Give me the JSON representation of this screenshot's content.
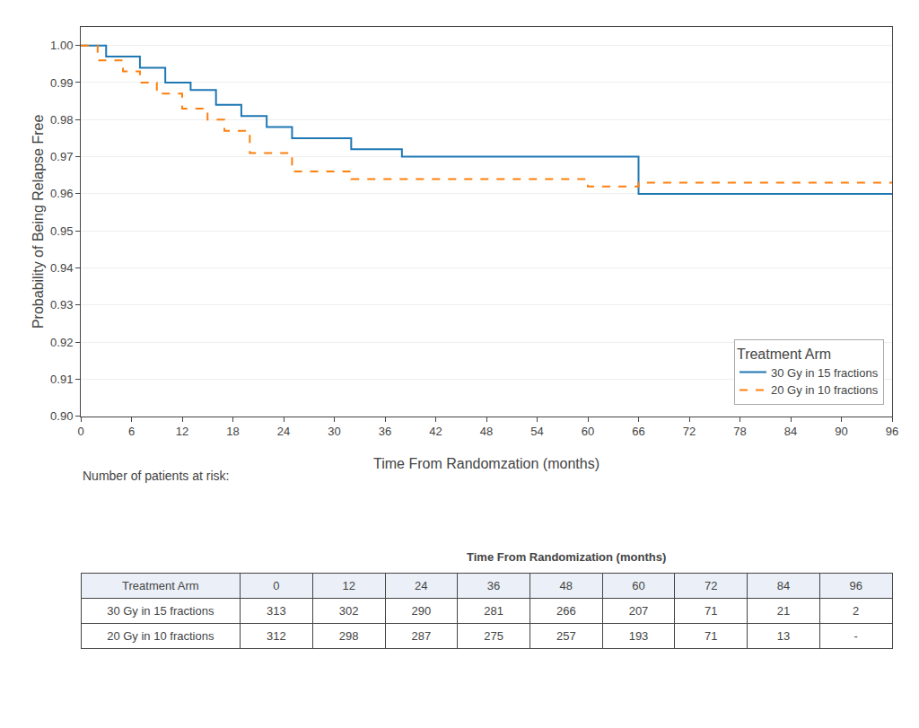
{
  "chart_data": {
    "type": "step",
    "xlabel": "Time From Randomzation (months)",
    "ylabel": "Probability of Being Relapse Free",
    "series": [
      {
        "name": "30 Gy in 15 fractions",
        "line_style": "solid",
        "x": [
          0,
          3,
          3,
          7,
          7,
          10,
          10,
          13,
          13,
          16,
          16,
          19,
          19,
          22,
          22,
          25,
          25,
          32,
          32,
          38,
          38,
          66,
          66,
          96
        ],
        "values": [
          1.0,
          1.0,
          0.997,
          0.997,
          0.994,
          0.994,
          0.99,
          0.99,
          0.988,
          0.988,
          0.984,
          0.984,
          0.981,
          0.981,
          0.978,
          0.978,
          0.975,
          0.975,
          0.972,
          0.972,
          0.97,
          0.97,
          0.96,
          0.96
        ]
      },
      {
        "name": "20 Gy in 10 fractions",
        "line_style": "dashed",
        "x": [
          0,
          2,
          2,
          5,
          5,
          7,
          7,
          9,
          9,
          12,
          12,
          15,
          15,
          17,
          17,
          20,
          20,
          25,
          25,
          32,
          32,
          38,
          38,
          60,
          60,
          66,
          66,
          96
        ],
        "values": [
          1.0,
          1.0,
          0.996,
          0.996,
          0.993,
          0.993,
          0.99,
          0.99,
          0.987,
          0.987,
          0.983,
          0.983,
          0.98,
          0.98,
          0.977,
          0.977,
          0.971,
          0.971,
          0.966,
          0.966,
          0.964,
          0.964,
          0.964,
          0.964,
          0.962,
          0.962,
          0.963,
          0.963
        ]
      }
    ],
    "xlim": [
      0,
      96
    ],
    "ylim": [
      0.9,
      1.005
    ],
    "xticks": [
      0,
      6,
      12,
      18,
      24,
      30,
      36,
      42,
      48,
      54,
      60,
      66,
      72,
      78,
      84,
      90,
      96
    ],
    "yticks": [
      {
        "value": 0.9,
        "label": "0.90"
      },
      0.91,
      0.92,
      0.93,
      0.94,
      0.95,
      0.96,
      0.97,
      0.98,
      0.99,
      {
        "value": 1.0,
        "label": "1.00"
      }
    ],
    "grid": "y",
    "legend": "lower right",
    "legend_title": "Treatment Arm",
    "risk_table": {
      "title": "Number of patients at risk:",
      "header": "Time From Randomization (months)",
      "first_column": "Treatment Arm",
      "times": [
        0,
        12,
        24,
        36,
        48,
        60,
        72,
        84,
        96
      ],
      "rows": [
        {
          "name": "30 Gy in 15 fractions",
          "values": [
            313,
            302,
            290,
            281,
            266,
            207,
            71,
            21,
            2
          ]
        },
        {
          "name": "20 Gy in 10 fractions",
          "values": [
            312,
            298,
            287,
            275,
            257,
            193,
            71,
            13,
            "-"
          ]
        }
      ]
    }
  }
}
